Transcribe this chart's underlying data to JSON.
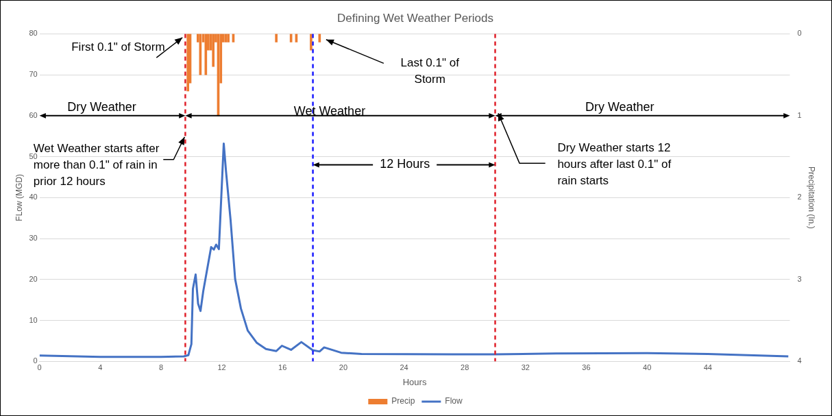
{
  "chart_data": {
    "type": "line",
    "title": "Defining Wet Weather Periods",
    "xlabel": "Hours",
    "ylabel": "FLow (MGD)",
    "y2label": "Precipitation (In.)",
    "xlim": [
      0,
      49.4
    ],
    "xticks": [
      0,
      4,
      8,
      12,
      16,
      20,
      24,
      28,
      32,
      36,
      40,
      44
    ],
    "ylim": [
      0,
      80
    ],
    "yticks": [
      0,
      10,
      20,
      30,
      40,
      50,
      60,
      70,
      80
    ],
    "y2lim": [
      4,
      0
    ],
    "y2ticks": [
      0,
      1,
      2,
      3,
      4
    ],
    "grid": "y",
    "legend": "bottom",
    "series": [
      {
        "name": "Precip",
        "type": "bar",
        "axis": "y2",
        "color": "#ed7d31",
        "x": [
          9.77,
          9.92,
          10.43,
          10.59,
          10.78,
          10.95,
          11.11,
          11.28,
          11.44,
          11.61,
          11.77,
          11.94,
          12.1,
          12.27,
          12.43,
          12.76,
          15.59,
          16.56,
          16.91,
          17.88,
          18.44
        ],
        "values": [
          0.7,
          0.6,
          0.1,
          0.5,
          0.1,
          0.5,
          0.2,
          0.2,
          0.4,
          0.1,
          1.0,
          0.6,
          0.1,
          0.1,
          0.1,
          0.1,
          0.1,
          0.1,
          0.1,
          0.2,
          0.1
        ]
      },
      {
        "name": "Flow",
        "color": "#4472c4",
        "x": [
          0,
          4,
          8,
          9.5,
          9.8,
          10.0,
          10.1,
          10.28,
          10.44,
          10.6,
          10.78,
          11.3,
          11.48,
          11.63,
          11.81,
          12.13,
          12.28,
          12.58,
          12.88,
          13.26,
          13.71,
          14.31,
          14.91,
          15.59,
          15.96,
          16.56,
          17.24,
          17.99,
          18.44,
          18.74,
          19.86,
          21.2,
          27.2,
          30.0,
          34,
          40,
          44,
          49.3
        ],
        "values": [
          1.4,
          1.1,
          1.1,
          1.2,
          1.5,
          4.2,
          17.7,
          21.2,
          14.1,
          12.3,
          17.1,
          27.9,
          27.3,
          28.5,
          27.4,
          53.2,
          46.4,
          34.5,
          20.1,
          12.9,
          7.5,
          4.5,
          3.0,
          2.5,
          3.8,
          2.8,
          4.7,
          2.7,
          2.4,
          3.4,
          2.1,
          1.8,
          1.7,
          1.7,
          1.9,
          2.0,
          1.8,
          1.2
        ]
      }
    ],
    "ref_lines": [
      {
        "axis": "x",
        "value": 9.6,
        "color": "#e0202a",
        "line_style": "dashed"
      },
      {
        "axis": "x",
        "value": 18,
        "color": "#1a1aff",
        "line_style": "dashed"
      },
      {
        "axis": "x",
        "value": 30,
        "color": "#e0202a",
        "line_style": "dashed"
      }
    ],
    "annotations": [
      "First 0.1\" of Storm",
      "Last 0.1\" of Storm",
      "Wet Weather starts after more than 0.1\" of rain in prior 12 hours",
      "Dry Weather starts 12 hours after last 0.1\" of rain starts",
      "Dry Weather",
      "Wet Weather",
      "Dry Weather",
      "12 Hours"
    ]
  }
}
